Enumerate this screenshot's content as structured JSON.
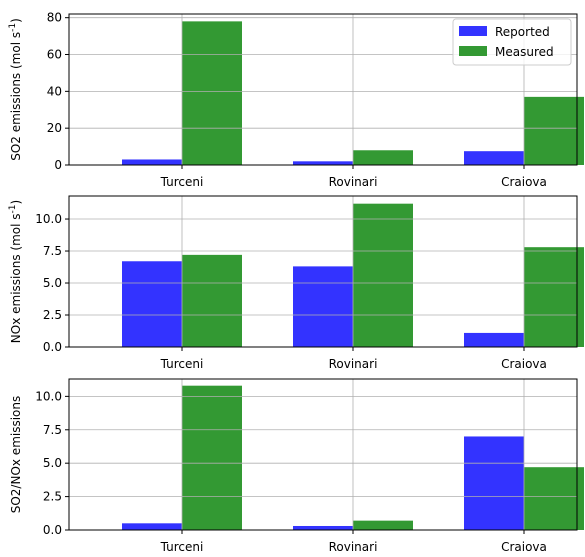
{
  "legend": {
    "items": [
      {
        "label": "Reported",
        "color": "#3333ff"
      },
      {
        "label": "Measured",
        "color": "#339933"
      }
    ],
    "placement": "upper-right of top panel"
  },
  "chart_data": [
    {
      "type": "bar",
      "categories": [
        "Turceni",
        "Rovinari",
        "Craiova"
      ],
      "ylabel": "SO2 emissions (mol s",
      "ylabel_unit_sup": "-1",
      "ylabel_close": ")",
      "ylim": [
        0,
        82
      ],
      "yticks": [
        0,
        20,
        40,
        60,
        80
      ],
      "ytick_labels": [
        "0",
        "20",
        "40",
        "60",
        "80"
      ],
      "grid": true,
      "legend": true,
      "series": [
        {
          "name": "Reported",
          "color": "#3333ff",
          "values": [
            3.0,
            2.0,
            7.5
          ]
        },
        {
          "name": "Measured",
          "color": "#339933",
          "values": [
            78.0,
            8.0,
            37.0
          ]
        }
      ]
    },
    {
      "type": "bar",
      "categories": [
        "Turceni",
        "Rovinari",
        "Craiova"
      ],
      "ylabel": "NOx emissions (mol s",
      "ylabel_unit_sup": "-1",
      "ylabel_close": ")",
      "ylim": [
        0,
        11.8
      ],
      "yticks": [
        0,
        2.5,
        5,
        7.5,
        10
      ],
      "ytick_labels": [
        "0.0",
        "2.5",
        "5.0",
        "7.5",
        "10.0"
      ],
      "grid": true,
      "legend": false,
      "series": [
        {
          "name": "Reported",
          "color": "#3333ff",
          "values": [
            6.7,
            6.3,
            1.1
          ]
        },
        {
          "name": "Measured",
          "color": "#339933",
          "values": [
            7.2,
            11.2,
            7.8
          ]
        }
      ]
    },
    {
      "type": "bar",
      "categories": [
        "Turceni",
        "Rovinari",
        "Craiova"
      ],
      "ylabel": "SO2/NOx emissions",
      "ylabel_unit_sup": "",
      "ylabel_close": "",
      "ylim": [
        0,
        11.3
      ],
      "yticks": [
        0,
        2.5,
        5,
        7.5,
        10
      ],
      "ytick_labels": [
        "0.0",
        "2.5",
        "5.0",
        "7.5",
        "10.0"
      ],
      "grid": true,
      "legend": false,
      "series": [
        {
          "name": "Reported",
          "color": "#3333ff",
          "values": [
            0.5,
            0.3,
            7.0
          ]
        },
        {
          "name": "Measured",
          "color": "#339933",
          "values": [
            10.8,
            0.7,
            4.7
          ]
        }
      ]
    }
  ]
}
